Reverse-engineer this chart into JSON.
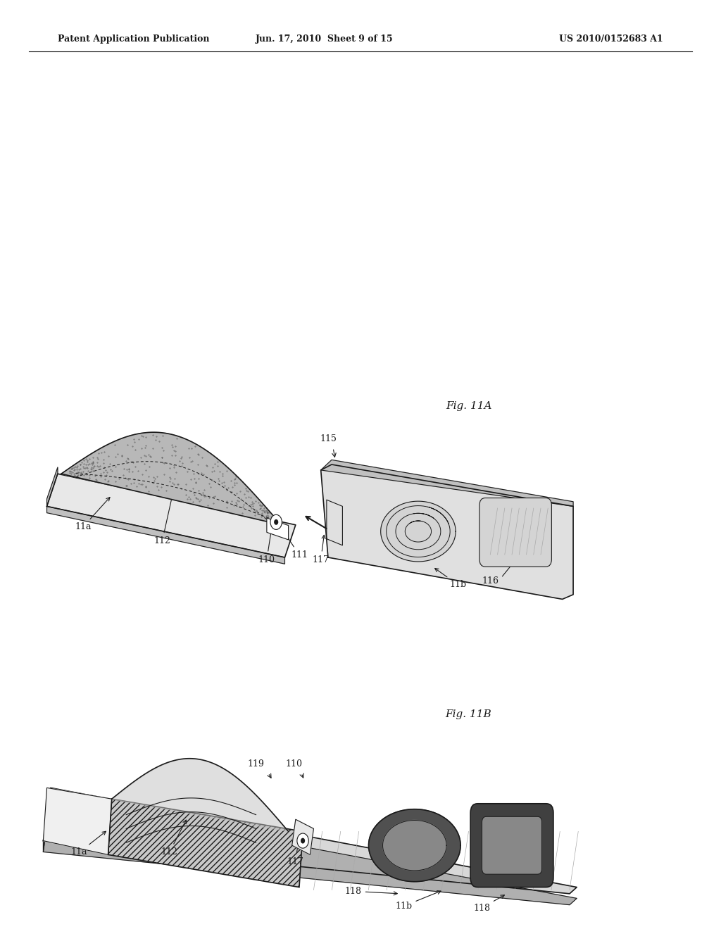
{
  "header_left": "Patent Application Publication",
  "header_center": "Jun. 17, 2010  Sheet 9 of 15",
  "header_right": "US 2010/0152683 A1",
  "fig_a_label": "Fig. 11A",
  "fig_b_label": "Fig. 11B",
  "background_color": "#ffffff",
  "line_color": "#1a1a1a"
}
